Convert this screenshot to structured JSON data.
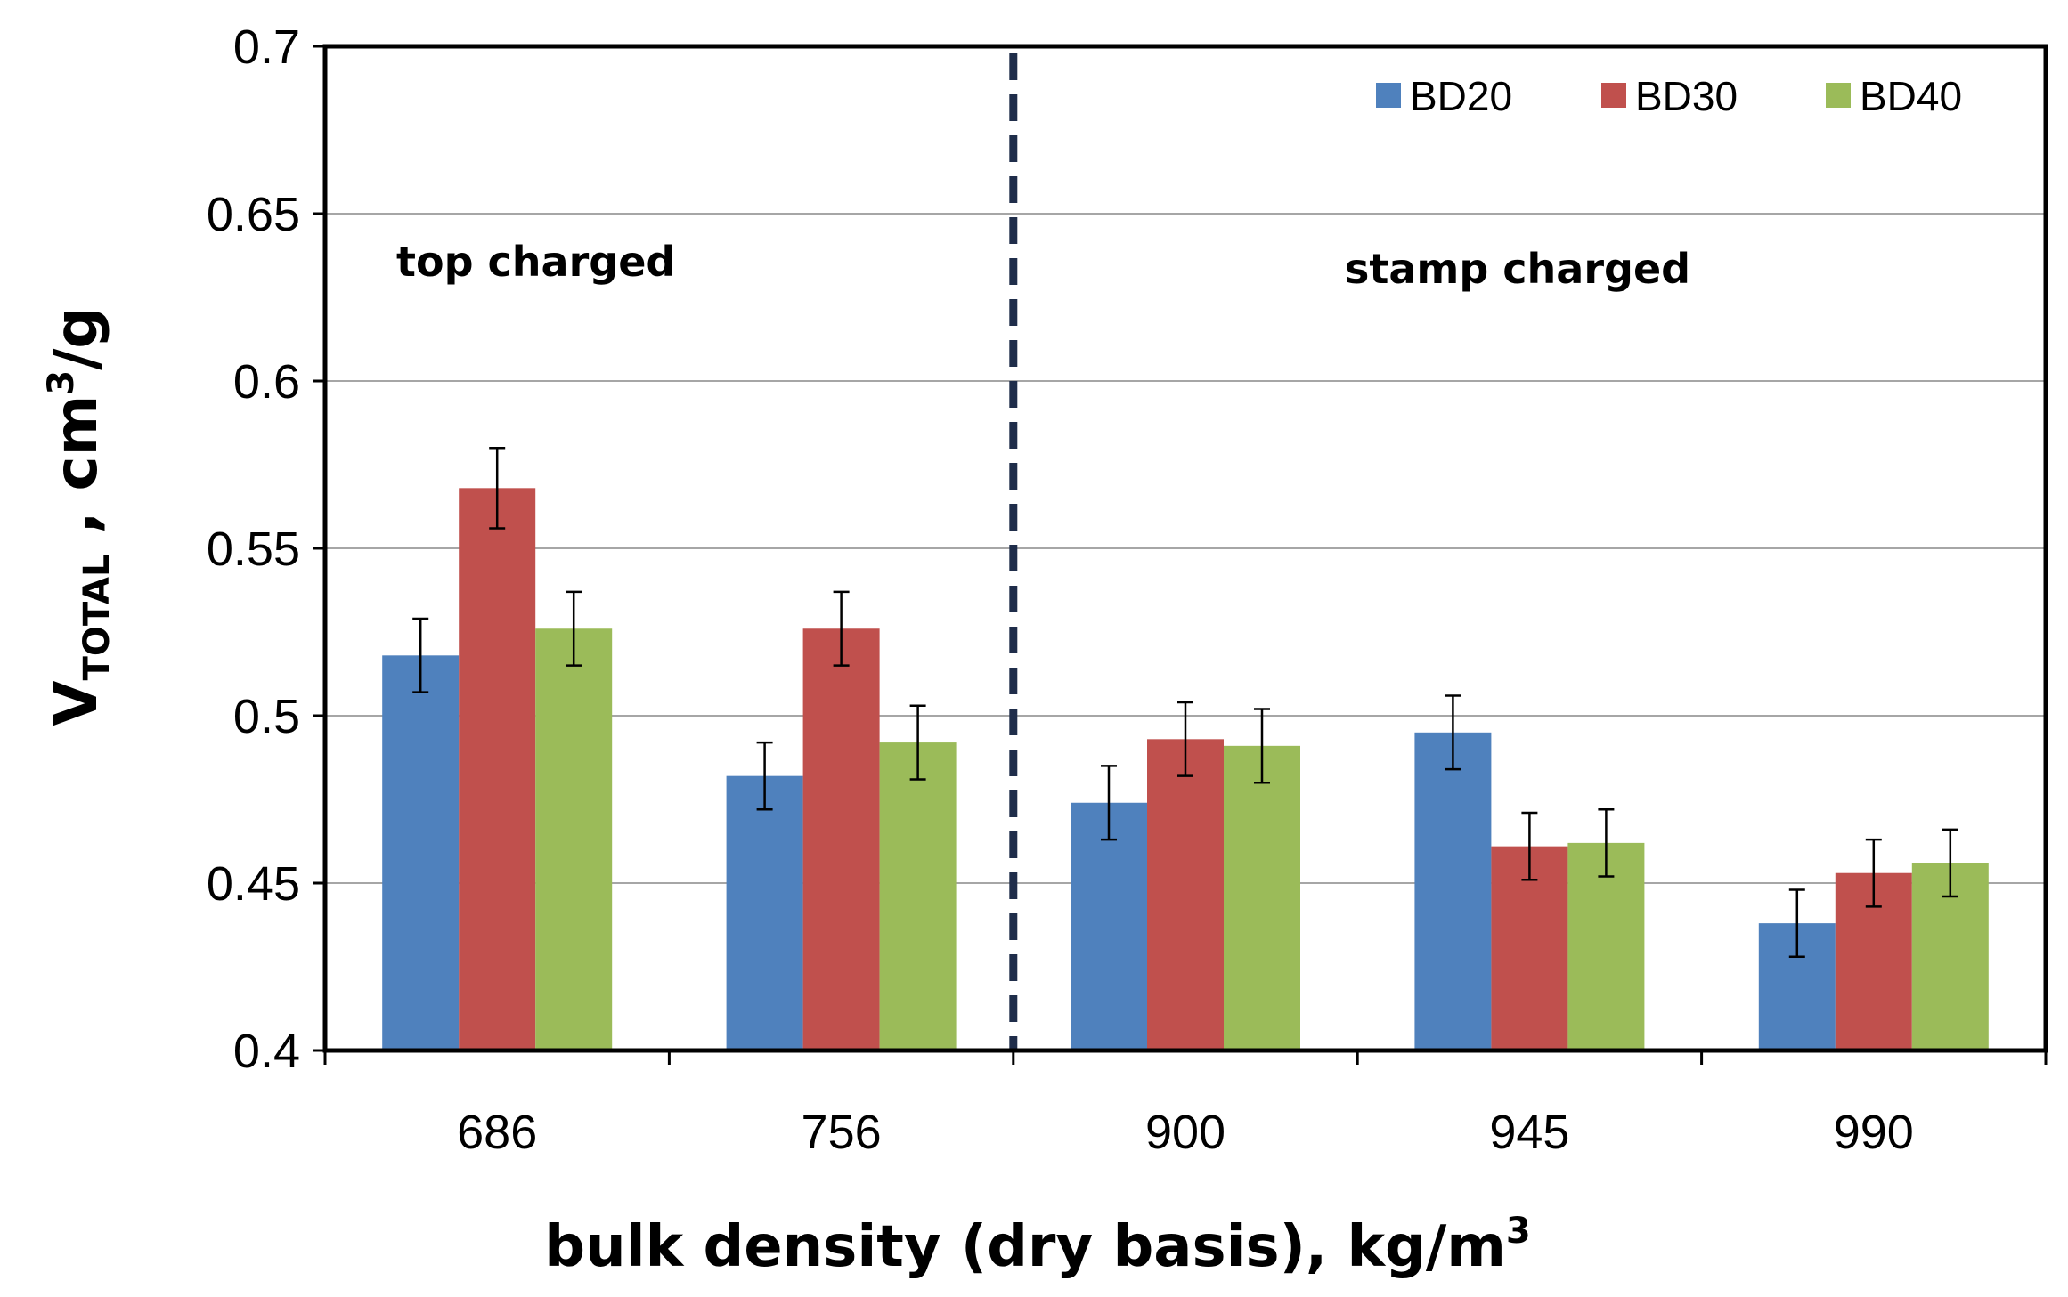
{
  "chart_data": {
    "type": "bar",
    "title": "",
    "categories": [
      "686",
      "756",
      "900",
      "945",
      "990"
    ],
    "series": [
      {
        "name": "BD20",
        "color": "#4f81bd",
        "values": [
          0.518,
          0.482,
          0.474,
          0.495,
          0.438
        ],
        "errors": [
          0.011,
          0.01,
          0.011,
          0.011,
          0.01
        ]
      },
      {
        "name": "BD30",
        "color": "#c0504d",
        "values": [
          0.568,
          0.526,
          0.493,
          0.461,
          0.453
        ],
        "errors": [
          0.012,
          0.011,
          0.011,
          0.01,
          0.01
        ]
      },
      {
        "name": "BD40",
        "color": "#9bbb59",
        "values": [
          0.526,
          0.492,
          0.491,
          0.462,
          0.456
        ],
        "errors": [
          0.011,
          0.011,
          0.011,
          0.01,
          0.01
        ]
      }
    ],
    "ylim": [
      0.4,
      0.7
    ],
    "yticks": [
      "0.4",
      "0.45",
      "0.5",
      "0.55",
      "0.6",
      "0.65",
      "0.7"
    ],
    "ylabel_main": "V",
    "ylabel_sub": "TOTAL",
    "ylabel_rest": " , cm",
    "ylabel_sup": "3",
    "ylabel_end": "/g",
    "xlabel_main": "bulk density (dry basis), kg/m",
    "xlabel_sup": "3",
    "grid": true,
    "legend_position": "top-right",
    "annotations": {
      "left_region": "top charged",
      "right_region": "stamp charged",
      "divider_after_category": "756"
    }
  }
}
